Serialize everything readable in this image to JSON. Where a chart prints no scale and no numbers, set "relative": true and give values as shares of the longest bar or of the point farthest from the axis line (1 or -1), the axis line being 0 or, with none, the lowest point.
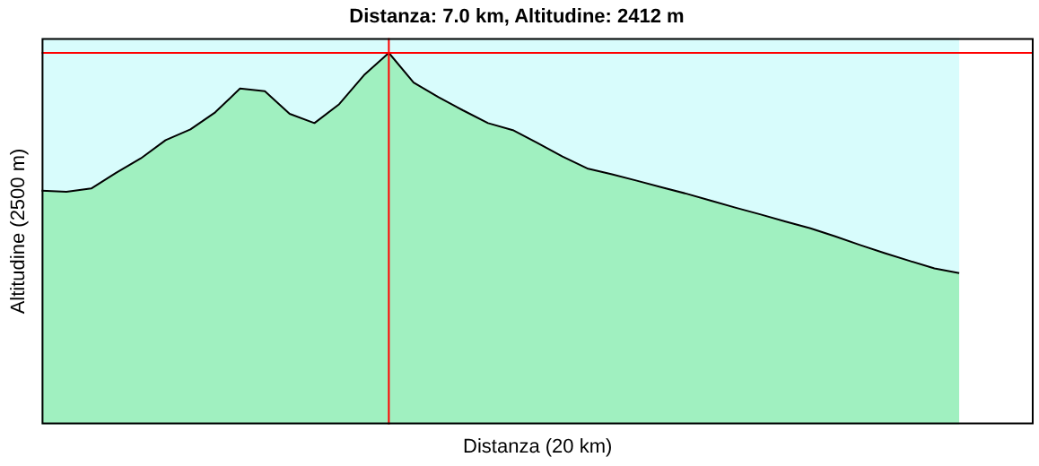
{
  "chart_data": {
    "type": "area",
    "title": "Distanza: 7.0 km, Altitudine: 2412 m",
    "xlabel": "Distanza (20 km)",
    "ylabel": "Altitudine (2500 m)",
    "relative": true,
    "categories": [
      null,
      null,
      null,
      null,
      null,
      null,
      null,
      null,
      null,
      null,
      null,
      null,
      null,
      null,
      null,
      null,
      null,
      null,
      null,
      null,
      null,
      null,
      null,
      null,
      null,
      null,
      null,
      null,
      null,
      null,
      null,
      null,
      null,
      null,
      null,
      null,
      null,
      null,
      null,
      null,
      null
    ],
    "series": [
      {
        "color": "#a0f0c0",
        "values": [
          0.629,
          0.626,
          0.635,
          0.677,
          0.716,
          0.765,
          0.794,
          0.84,
          0.904,
          0.897,
          0.836,
          0.811,
          0.862,
          0.94,
          1,
          0.92,
          0.881,
          0.845,
          0.811,
          0.792,
          0.757,
          0.721,
          0.689,
          0.673,
          0.656,
          0.638,
          0.621,
          0.602,
          0.583,
          0.565,
          0.546,
          0.528,
          0.506,
          0.483,
          0.461,
          0.44,
          0.42,
          0.407,
          null,
          null,
          null
        ]
      }
    ],
    "grid": false,
    "legend": false,
    "ref_lines": [
      {
        "axis": "y",
        "value": 1,
        "color": "#ff0000"
      }
    ]
  }
}
